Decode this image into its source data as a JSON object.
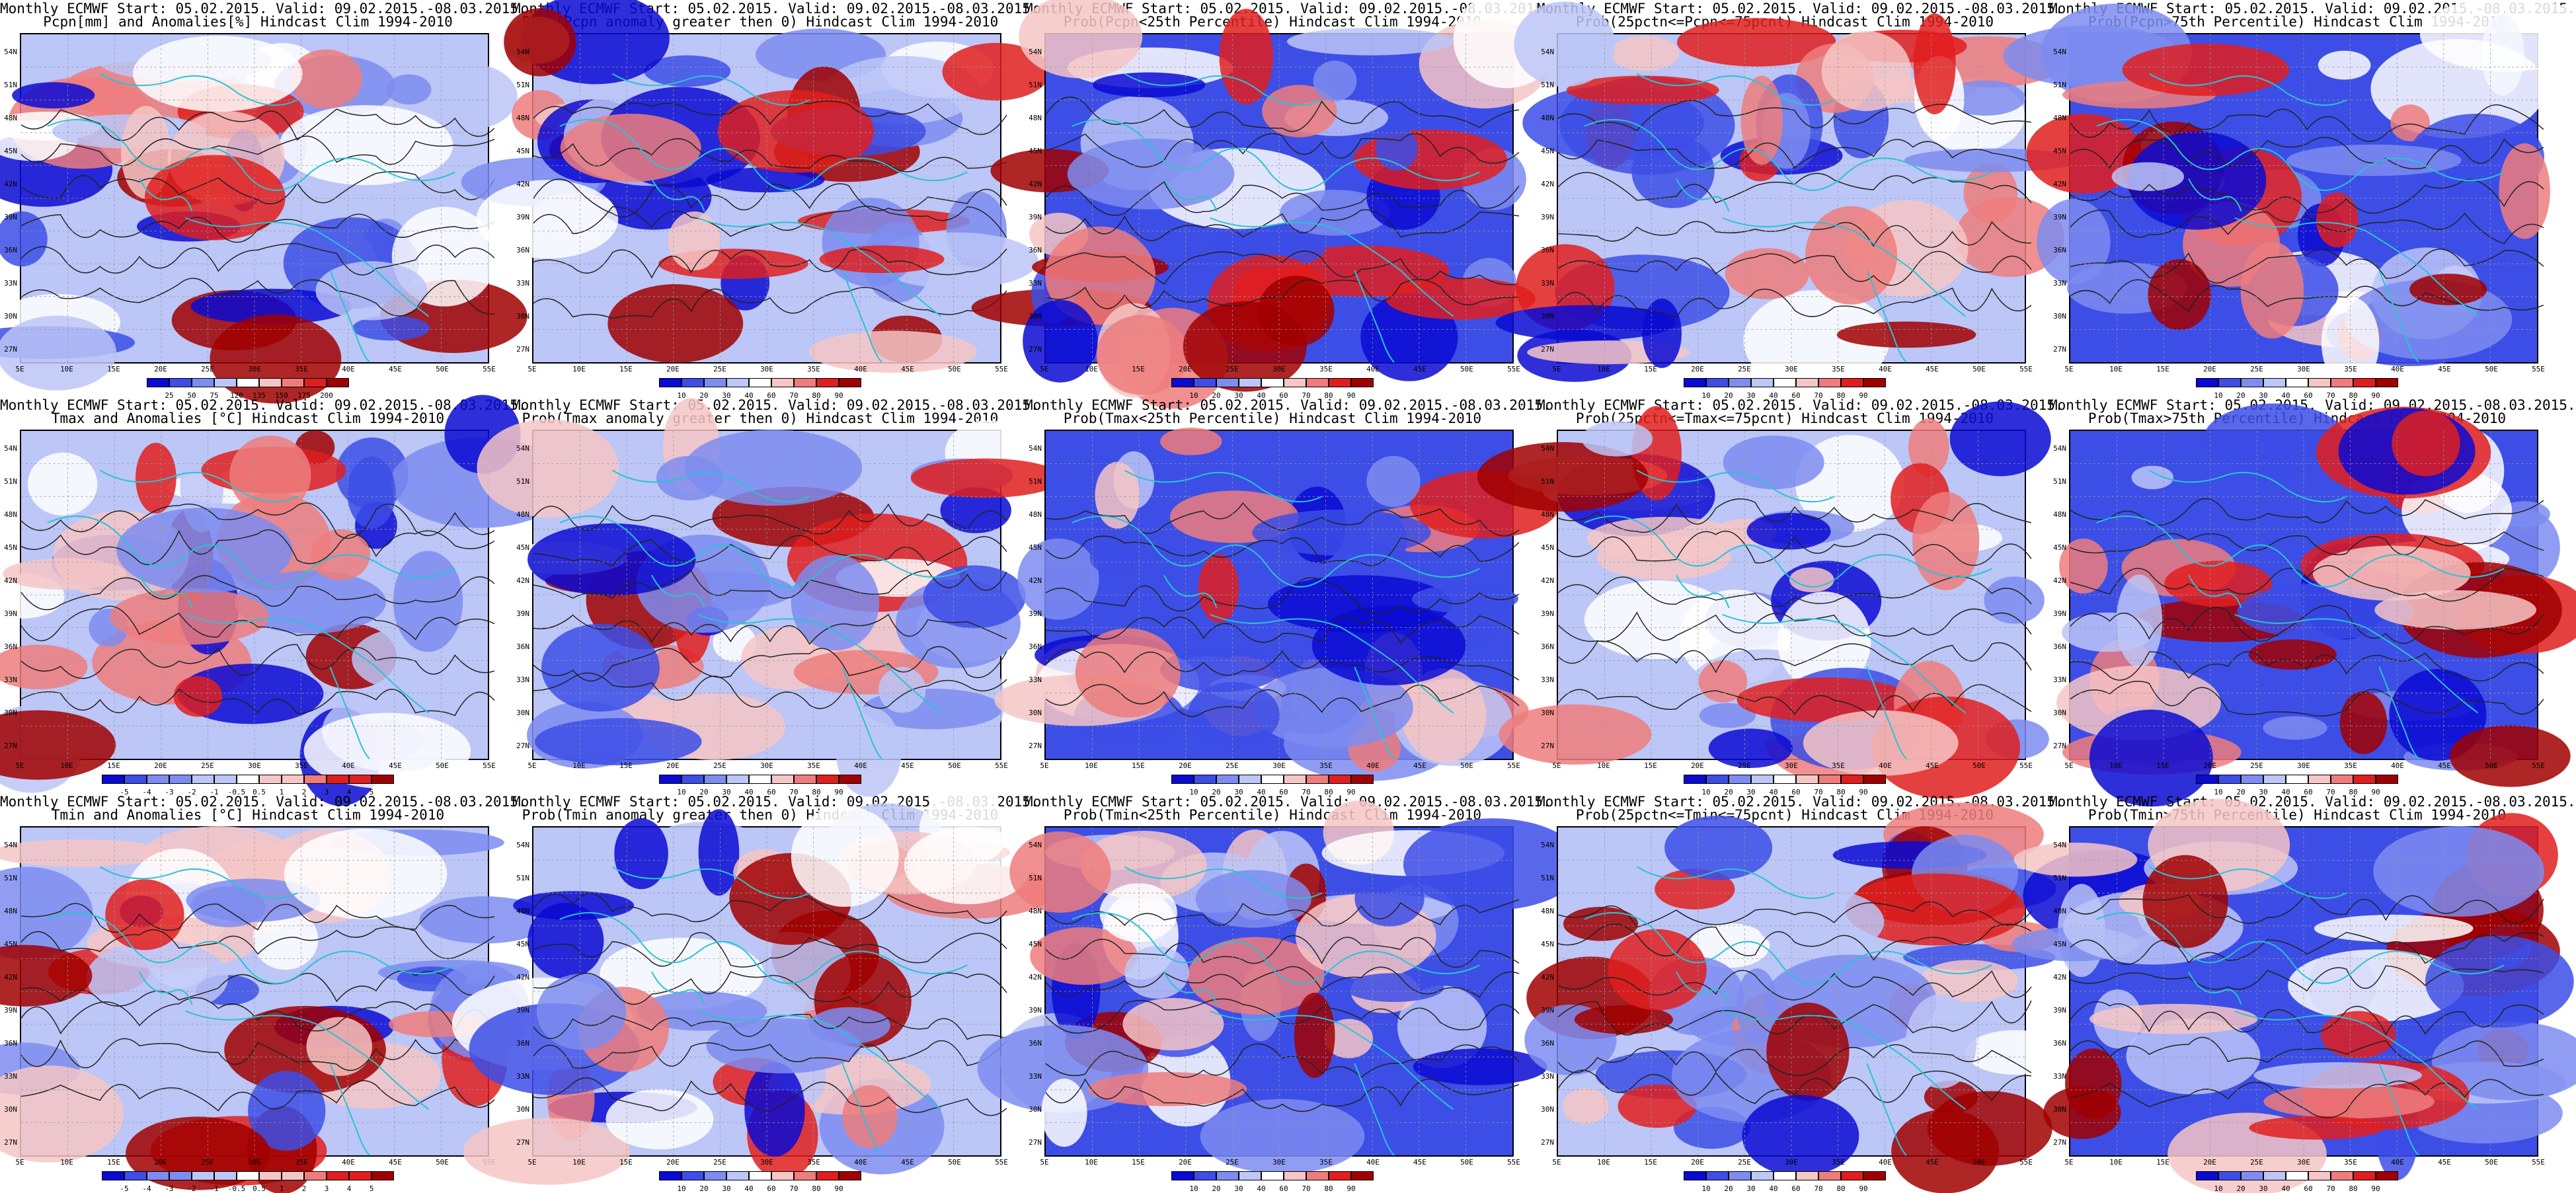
{
  "page": {
    "description_free": true
  },
  "axes": {
    "lat_labels": [
      "54N",
      "51N",
      "48N",
      "45N",
      "42N",
      "39N",
      "36N",
      "33N",
      "30N",
      "27N"
    ],
    "lon_labels": [
      "5E",
      "10E",
      "15E",
      "20E",
      "25E",
      "30E",
      "35E",
      "40E",
      "45E",
      "50E",
      "55E"
    ]
  },
  "colors": {
    "deep_blue": "#0a0ad2",
    "blue": "#3c4ee6",
    "mid_blue": "#7d8cf0",
    "light_blue": "#bcc6f7",
    "white": "#ffffff",
    "light_red": "#f6c6c6",
    "mid_red": "#ef7c7c",
    "red": "#e01e1e",
    "dark_red": "#a00000",
    "coast": "#27c4d4",
    "contour": "#222222"
  },
  "panels": [
    {
      "title1": "Monthly ECMWF Start: 05.02.2015. Valid: 09.02.2015.-08.03.2015.",
      "title2": "Pcpn[mm] and Anomalies[%] Hindcast Clim 1994-2010",
      "colorbar": [
        "25",
        "50",
        "75",
        "120",
        "135",
        "150",
        "175",
        "200"
      ],
      "palette": "anom"
    },
    {
      "title1": "Monthly ECMWF Start: 05.02.2015. Valid: 09.02.2015.-08.03.2015.",
      "title2": "Prob(Pcpn anomaly greater then 0) Hindcast Clim 1994-2010",
      "colorbar": [
        "10",
        "20",
        "30",
        "40",
        "60",
        "70",
        "80",
        "90"
      ],
      "palette": "prob"
    },
    {
      "title1": "Monthly ECMWF Start: 05.02.2015. Valid: 09.02.2015.-08.03.2015.",
      "title2": "Prob(Pcpn<25th Percentile) Hindcast Clim 1994-2010",
      "colorbar": [
        "10",
        "20",
        "30",
        "40",
        "60",
        "70",
        "80",
        "90"
      ],
      "palette": "prob"
    },
    {
      "title1": "Monthly ECMWF Start: 05.02.2015. Valid: 09.02.2015.-08.03.2015.",
      "title2": "Prob(25pctn<=Pcpn<=75pcnt) Hindcast Clim 1994-2010",
      "colorbar": [
        "10",
        "20",
        "30",
        "40",
        "60",
        "70",
        "80",
        "90"
      ],
      "palette": "prob"
    },
    {
      "title1": "Monthly ECMWF Start: 05.02.2015. Valid: 09.02.2015.-08.03.2015.",
      "title2": "Prob(Pcpn>75th Percentile) Hindcast Clim 1994-2010",
      "colorbar": [
        "10",
        "20",
        "30",
        "40",
        "60",
        "70",
        "80",
        "90"
      ],
      "palette": "prob"
    },
    {
      "title1": "Monthly ECMWF Start: 05.02.2015. Valid: 09.02.2015.-08.03.2015.",
      "title2": "Tmax and Anomalies [°C] Hindcast Clim 1994-2010",
      "colorbar": [
        "-5",
        "-4",
        "-3",
        "-2",
        "-1",
        "-0.5",
        "0.5",
        "1",
        "2",
        "3",
        "4",
        "5"
      ],
      "palette": "temp"
    },
    {
      "title1": "Monthly ECMWF Start: 05.02.2015. Valid: 09.02.2015.-08.03.2015.",
      "title2": "Prob(Tmax anomaly greater then 0) Hindcast Clim 1994-2010",
      "colorbar": [
        "10",
        "20",
        "30",
        "40",
        "60",
        "70",
        "80",
        "90"
      ],
      "palette": "prob"
    },
    {
      "title1": "Monthly ECMWF Start: 05.02.2015. Valid: 09.02.2015.-08.03.2015.",
      "title2": "Prob(Tmax<25th Percentile) Hindcast Clim 1994-2010",
      "colorbar": [
        "10",
        "20",
        "30",
        "40",
        "60",
        "70",
        "80",
        "90"
      ],
      "palette": "prob"
    },
    {
      "title1": "Monthly ECMWF Start: 05.02.2015. Valid: 09.02.2015.-08.03.2015.",
      "title2": "Prob(25pctn<=Tmax<=75pcnt) Hindcast Clim 1994-2010",
      "colorbar": [
        "10",
        "20",
        "30",
        "40",
        "60",
        "70",
        "80",
        "90"
      ],
      "palette": "prob"
    },
    {
      "title1": "Monthly ECMWF Start: 05.02.2015. Valid: 09.02.2015.-08.03.2015.",
      "title2": "Prob(Tmax>75th Percentile) Hindcast Clim 1994-2010",
      "colorbar": [
        "10",
        "20",
        "30",
        "40",
        "60",
        "70",
        "80",
        "90"
      ],
      "palette": "prob"
    },
    {
      "title1": "Monthly ECMWF Start: 05.02.2015. Valid: 09.02.2015.-08.03.2015.",
      "title2": "Tmin and Anomalies [°C] Hindcast Clim 1994-2010",
      "colorbar": [
        "-5",
        "-4",
        "-3",
        "-2",
        "-1",
        "-0.5",
        "0.5",
        "1",
        "2",
        "3",
        "4",
        "5"
      ],
      "palette": "temp"
    },
    {
      "title1": "Monthly ECMWF Start: 05.02.2015. Valid: 09.02.2015.-08.03.2015.",
      "title2": "Prob(Tmin anomaly greater then 0) Hindcast Clim 1994-2010",
      "colorbar": [
        "10",
        "20",
        "30",
        "40",
        "60",
        "70",
        "80",
        "90"
      ],
      "palette": "prob"
    },
    {
      "title1": "Monthly ECMWF Start: 05.02.2015. Valid: 09.02.2015.-08.03.2015.",
      "title2": "Prob(Tmin<25th Percentile) Hindcast Clim 1994-2010",
      "colorbar": [
        "10",
        "20",
        "30",
        "40",
        "60",
        "70",
        "80",
        "90"
      ],
      "palette": "prob"
    },
    {
      "title1": "Monthly ECMWF Start: 05.02.2015. Valid: 09.02.2015.-08.03.2015.",
      "title2": "Prob(25pctn<=Tmin<=75pcnt) Hindcast Clim 1994-2010",
      "colorbar": [
        "10",
        "20",
        "30",
        "40",
        "60",
        "70",
        "80",
        "90"
      ],
      "palette": "prob"
    },
    {
      "title1": "Monthly ECMWF Start: 05.02.2015. Valid: 09.02.2015.-08.03.2015.",
      "title2": "Prob(Tmin>75th Percentile) Hindcast Clim 1994-2010",
      "colorbar": [
        "10",
        "20",
        "30",
        "40",
        "60",
        "70",
        "80",
        "90"
      ],
      "palette": "prob"
    }
  ]
}
